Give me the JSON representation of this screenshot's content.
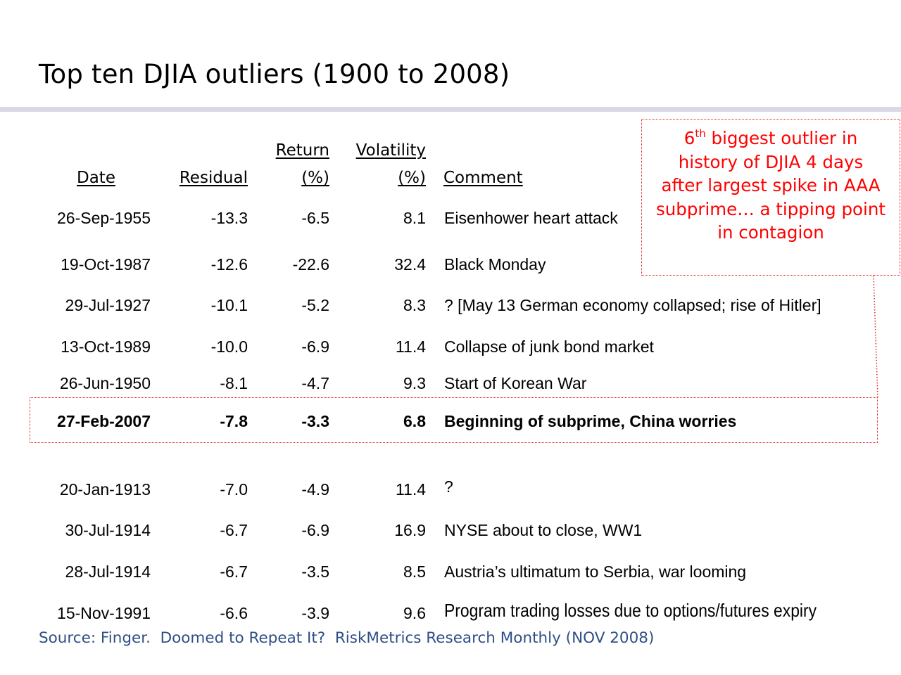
{
  "title": "Top ten DJIA outliers (1900 to 2008)",
  "table": {
    "headers": {
      "date": "Date",
      "residual": "Residual",
      "return_line1": "Return",
      "return_line2": "(%)",
      "volatility_line1": "Volatility",
      "volatility_line2": "(%)",
      "comment": "Comment"
    },
    "rows": [
      {
        "date": "26-Sep-1955",
        "residual": "-13.3",
        "return": "-6.5",
        "volatility": "8.1",
        "comment": "Eisenhower heart attack"
      },
      {
        "date": "19-Oct-1987",
        "residual": "-12.6",
        "return": "-22.6",
        "volatility": "32.4",
        "comment": "Black Monday"
      },
      {
        "date": "29-Jul-1927",
        "residual": "-10.1",
        "return": "-5.2",
        "volatility": "8.3",
        "comment": "? [May 13  German economy collapsed; rise of Hitler]"
      },
      {
        "date": "13-Oct-1989",
        "residual": "-10.0",
        "return": "-6.9",
        "volatility": "11.4",
        "comment": "Collapse of junk bond market"
      },
      {
        "date": "26-Jun-1950",
        "residual": "-8.1",
        "return": "-4.7",
        "volatility": "9.3",
        "comment": "Start of Korean War"
      },
      {
        "date": "27-Feb-2007",
        "residual": "-7.8",
        "return": "-3.3",
        "volatility": "6.8",
        "comment": "Beginning of subprime, China worries",
        "highlighted": true
      },
      {
        "date": "20-Jan-1913",
        "residual": "-7.0",
        "return": "-4.9",
        "volatility": "11.4",
        "comment": "?"
      },
      {
        "date": "30-Jul-1914",
        "residual": "-6.7",
        "return": "-6.9",
        "volatility": "16.9",
        "comment": "NYSE about to close, WW1"
      },
      {
        "date": "28-Jul-1914",
        "residual": "-6.7",
        "return": "-3.5",
        "volatility": "8.5",
        "comment": "Austria’s ultimatum to Serbia, war looming"
      },
      {
        "date": "15-Nov-1991",
        "residual": "-6.6",
        "return": "-3.9",
        "volatility": "9.6",
        "comment": "Program trading losses due to options/futures expiry"
      }
    ]
  },
  "callout": {
    "number": "6",
    "superscript": "th",
    "line1_rest": " biggest outlier in",
    "line2": "history of DJIA 4 days",
    "line3": "after largest spike in AAA",
    "line4": "subprime… a tipping point",
    "line5": "in contagion"
  },
  "source": "Source: Finger.  Doomed to Repeat It?  RiskMetrics Research Monthly (NOV 2008)",
  "colors": {
    "accent_red": "#ff0000",
    "source_blue": "#2f4f86",
    "rule_gray": "#d9d9e3"
  }
}
